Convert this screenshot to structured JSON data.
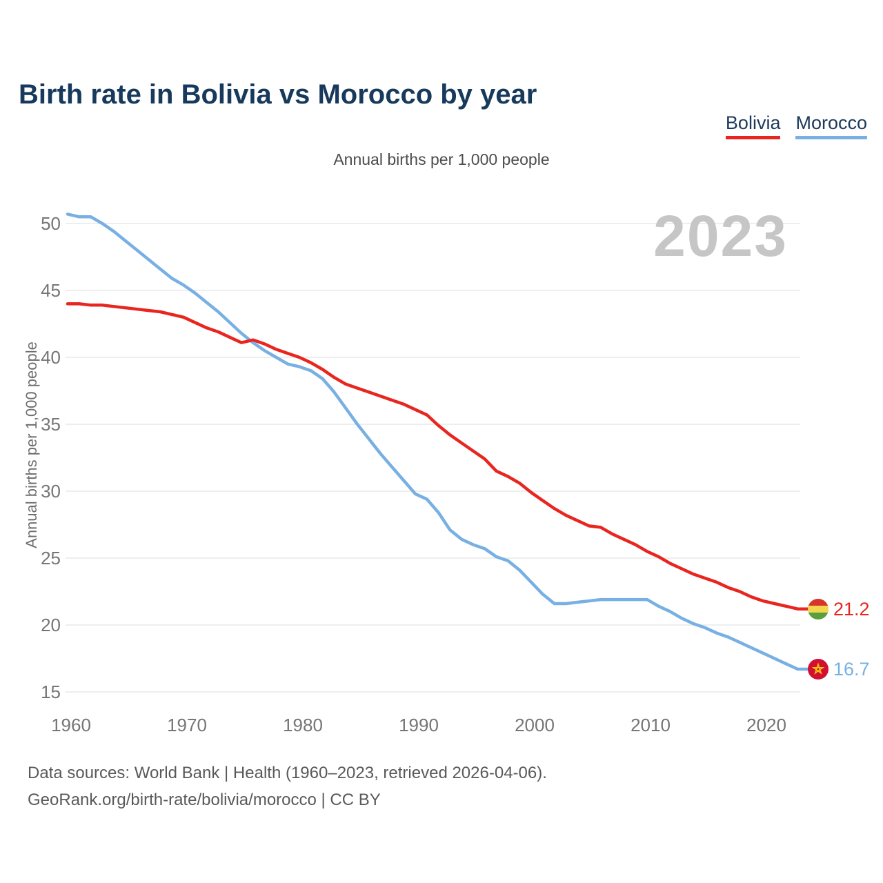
{
  "title": "Birth rate in Bolivia vs Morocco by year",
  "subtitle": "Annual births per 1,000 people",
  "watermark": "2023",
  "legend": [
    {
      "label": "Bolivia",
      "color": "#e8261f"
    },
    {
      "label": "Morocco",
      "color": "#78b0e3"
    }
  ],
  "footer": {
    "line1": "Data sources: World Bank | Health (1960–2023, retrieved 2026-04-06).",
    "line2": "GeoRank.org/birth-rate/bolivia/morocco | CC BY"
  },
  "end_labels": {
    "bolivia": {
      "value": "21.2",
      "flag": {
        "icon": "bolivia-flag",
        "stripe_red": "#d8342c",
        "stripe_yellow": "#f2d74e",
        "stripe_green": "#5a9e3e"
      }
    },
    "morocco": {
      "value": "16.7",
      "flag": {
        "icon": "morocco-flag",
        "background": "#d21034",
        "star": "#f7c608"
      }
    }
  },
  "chart_data": {
    "type": "line",
    "title": "Birth rate in Bolivia vs Morocco by year",
    "xlabel": "",
    "ylabel": "Annual births per 1,000 people",
    "grid": "horizontal",
    "legend_position": "top-right",
    "ylim": [
      13.5,
      52
    ],
    "yticks": [
      15,
      20,
      25,
      30,
      35,
      40,
      45,
      50
    ],
    "xticks": [
      1960,
      1970,
      1980,
      1990,
      2000,
      2010,
      2020
    ],
    "x": [
      1960,
      1961,
      1962,
      1963,
      1964,
      1965,
      1966,
      1967,
      1968,
      1969,
      1970,
      1971,
      1972,
      1973,
      1974,
      1975,
      1976,
      1977,
      1978,
      1979,
      1980,
      1981,
      1982,
      1983,
      1984,
      1985,
      1986,
      1987,
      1988,
      1989,
      1990,
      1991,
      1992,
      1993,
      1994,
      1995,
      1996,
      1997,
      1998,
      1999,
      2000,
      2001,
      2002,
      2003,
      2004,
      2005,
      2006,
      2007,
      2008,
      2009,
      2010,
      2011,
      2012,
      2013,
      2014,
      2015,
      2016,
      2017,
      2018,
      2019,
      2020,
      2021,
      2022,
      2023
    ],
    "series": [
      {
        "name": "Bolivia",
        "color": "#e8261f",
        "end_label": "21.2",
        "values": [
          44.0,
          44.0,
          43.9,
          43.9,
          43.8,
          43.7,
          43.6,
          43.5,
          43.4,
          43.2,
          43.0,
          42.6,
          42.2,
          41.9,
          41.5,
          41.1,
          41.3,
          41.0,
          40.6,
          40.3,
          40.0,
          39.6,
          39.1,
          38.5,
          38.0,
          37.7,
          37.4,
          37.1,
          36.8,
          36.5,
          36.1,
          35.7,
          34.9,
          34.2,
          33.6,
          33.0,
          32.4,
          31.5,
          31.1,
          30.6,
          29.9,
          29.3,
          28.7,
          28.2,
          27.8,
          27.4,
          27.3,
          26.8,
          26.4,
          26.0,
          25.5,
          25.1,
          24.6,
          24.2,
          23.8,
          23.5,
          23.2,
          22.8,
          22.5,
          22.1,
          21.8,
          21.6,
          21.4,
          21.2
        ]
      },
      {
        "name": "Morocco",
        "color": "#78b0e3",
        "end_label": "16.7",
        "values": [
          50.7,
          50.5,
          50.5,
          50.0,
          49.4,
          48.7,
          48.0,
          47.3,
          46.6,
          45.9,
          45.4,
          44.8,
          44.1,
          43.4,
          42.6,
          41.8,
          41.1,
          40.5,
          40.0,
          39.5,
          39.3,
          39.0,
          38.4,
          37.4,
          36.2,
          35.0,
          33.9,
          32.8,
          31.8,
          30.8,
          29.8,
          29.4,
          28.4,
          27.1,
          26.4,
          26.0,
          25.7,
          25.1,
          24.8,
          24.1,
          23.2,
          22.3,
          21.6,
          21.6,
          21.7,
          21.8,
          21.9,
          21.9,
          21.9,
          21.9,
          21.9,
          21.4,
          21.0,
          20.5,
          20.1,
          19.8,
          19.4,
          19.1,
          18.7,
          18.3,
          17.9,
          17.5,
          17.1,
          16.7
        ]
      }
    ]
  }
}
